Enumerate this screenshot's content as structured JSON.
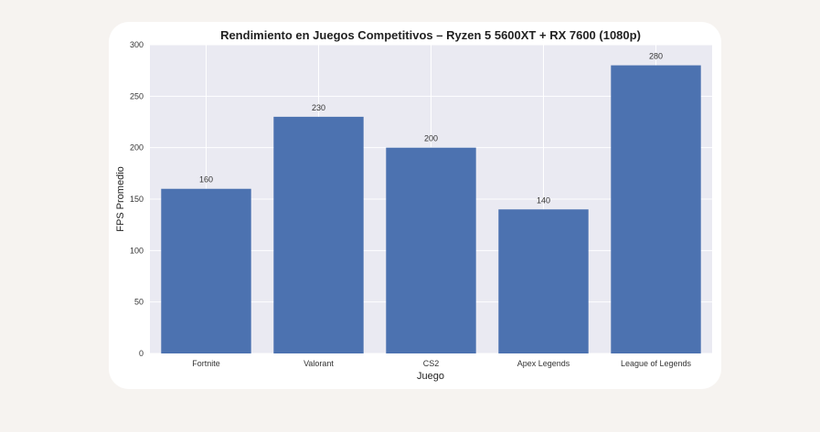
{
  "chart_data": {
    "type": "bar",
    "title": "Rendimiento en Juegos Competitivos – Ryzen 5 5600XT + RX 7600 (1080p)",
    "xlabel": "Juego",
    "ylabel": "FPS Promedio",
    "categories": [
      "Fortnite",
      "Valorant",
      "CS2",
      "Apex Legends",
      "League of Legends"
    ],
    "values": [
      160,
      230,
      200,
      140,
      280
    ],
    "ylim": [
      0,
      300
    ],
    "yticks": [
      0,
      50,
      100,
      150,
      200,
      250,
      300
    ],
    "grid": true,
    "bar_color": "#4c72b0",
    "plot_background": "#eaeaf2"
  }
}
